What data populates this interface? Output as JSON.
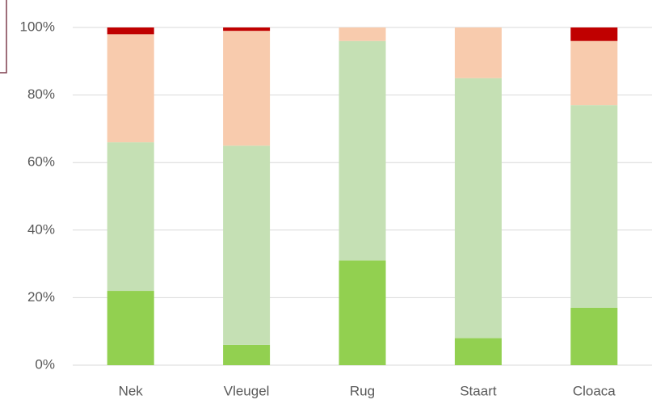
{
  "chart_data": {
    "type": "stacked_bar",
    "categories": [
      "Nek",
      "Vleugel",
      "Rug",
      "Staart",
      "Cloaca"
    ],
    "series": [
      {
        "color": "#92d050",
        "values": [
          22,
          6,
          31,
          8,
          17
        ]
      },
      {
        "color": "#c5e0b4",
        "values": [
          44,
          59,
          65,
          77,
          60
        ]
      },
      {
        "color": "#f8cbad",
        "values": [
          32,
          34,
          4,
          15,
          19
        ]
      },
      {
        "color": "#c00000",
        "values": [
          2,
          1,
          0,
          0,
          4
        ]
      }
    ],
    "ylim": [
      0,
      100
    ],
    "yticks": [
      {
        "value": 0,
        "label": "0%"
      },
      {
        "value": 20,
        "label": "20%"
      },
      {
        "value": 40,
        "label": "40%"
      },
      {
        "value": 60,
        "label": "60%"
      },
      {
        "value": 80,
        "label": "80%"
      },
      {
        "value": 100,
        "label": "100%"
      }
    ],
    "grid": true
  }
}
